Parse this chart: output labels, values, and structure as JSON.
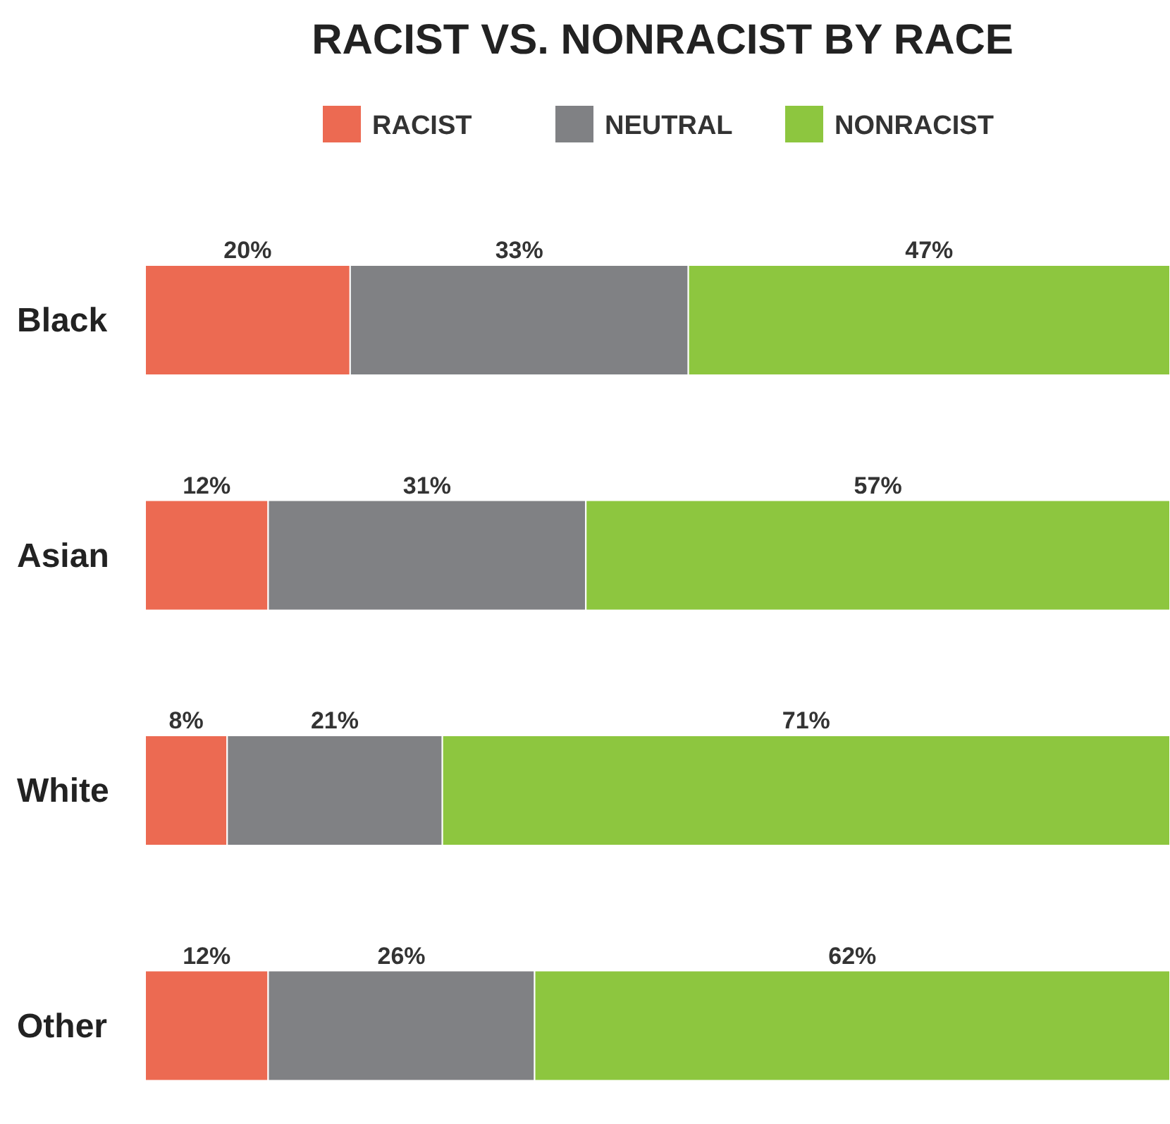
{
  "chart_data": {
    "type": "bar",
    "title": "RACIST VS. NONRACIST BY RACE",
    "orientation": "horizontal",
    "stacked": true,
    "categories": [
      "Black",
      "Asian",
      "White",
      "Other"
    ],
    "tick_labels": "y",
    "legend": "top",
    "grid": false,
    "series": [
      {
        "name": "RACIST",
        "color": "#ec6a52",
        "values": [
          20,
          12,
          8,
          12
        ],
        "value_labels": [
          "20%",
          "12%",
          "8%",
          "12%"
        ]
      },
      {
        "name": "NEUTRAL",
        "color": "#808184",
        "values": [
          33,
          31,
          21,
          26
        ],
        "value_labels": [
          "33%",
          "31%",
          "21%",
          "26%"
        ]
      },
      {
        "name": "NONRACIST",
        "color": "#8dc63f",
        "values": [
          47,
          57,
          71,
          62
        ],
        "value_labels": [
          "47%",
          "57%",
          "71%",
          "62%"
        ]
      }
    ]
  }
}
